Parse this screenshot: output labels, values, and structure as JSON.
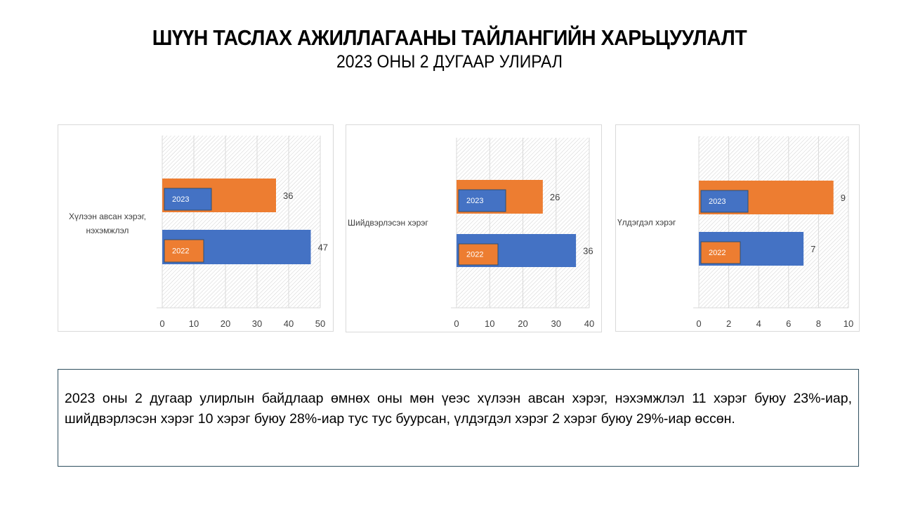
{
  "header": {
    "title": "ШҮҮН ТАСЛАХ АЖИЛЛАГААНЫ ТАЙЛАНГИЙН ХАРЬЦУУЛАЛТ",
    "subtitle": "2023 ОНЫ 2 ДУГААР УЛИРАЛ"
  },
  "colors": {
    "y2023": "#ED7D31",
    "y2022": "#4472C4",
    "grid": "#d9d9d9",
    "text": "#404040"
  },
  "chart_data": [
    {
      "type": "bar",
      "orientation": "horizontal",
      "category_label": "Хүлээн авсан хэрэг, нэхэмжлэл",
      "series": [
        {
          "name": "2023",
          "value": 36
        },
        {
          "name": "2022",
          "value": 47
        }
      ],
      "xlim": [
        0,
        50
      ],
      "ticks": [
        "0",
        "10",
        "20",
        "30",
        "40",
        "50"
      ]
    },
    {
      "type": "bar",
      "orientation": "horizontal",
      "category_label": "Шийдвэрлэсэн хэрэг",
      "series": [
        {
          "name": "2023",
          "value": 26
        },
        {
          "name": "2022",
          "value": 36
        }
      ],
      "xlim": [
        0,
        40
      ],
      "ticks": [
        "0",
        "10",
        "20",
        "30",
        "40"
      ]
    },
    {
      "type": "bar",
      "orientation": "horizontal",
      "category_label": "Үлдэгдэл хэрэг",
      "series": [
        {
          "name": "2023",
          "value": 9
        },
        {
          "name": "2022",
          "value": 7
        }
      ],
      "xlim": [
        0,
        10
      ],
      "ticks": [
        "0",
        "2",
        "4",
        "6",
        "8",
        "10"
      ]
    }
  ],
  "summary": "2023 оны 2 дугаар улирлын байдлаар өмнөх оны мөн үеэс хүлээн авсан хэрэг, нэхэмжлэл 11 хэрэг буюу 23%-иар, шийдвэрлэсэн хэрэг 10 хэрэг буюу 28%-иар тус тус буурсан, үлдэгдэл хэрэг 2 хэрэг буюу 29%-иар өссөн."
}
